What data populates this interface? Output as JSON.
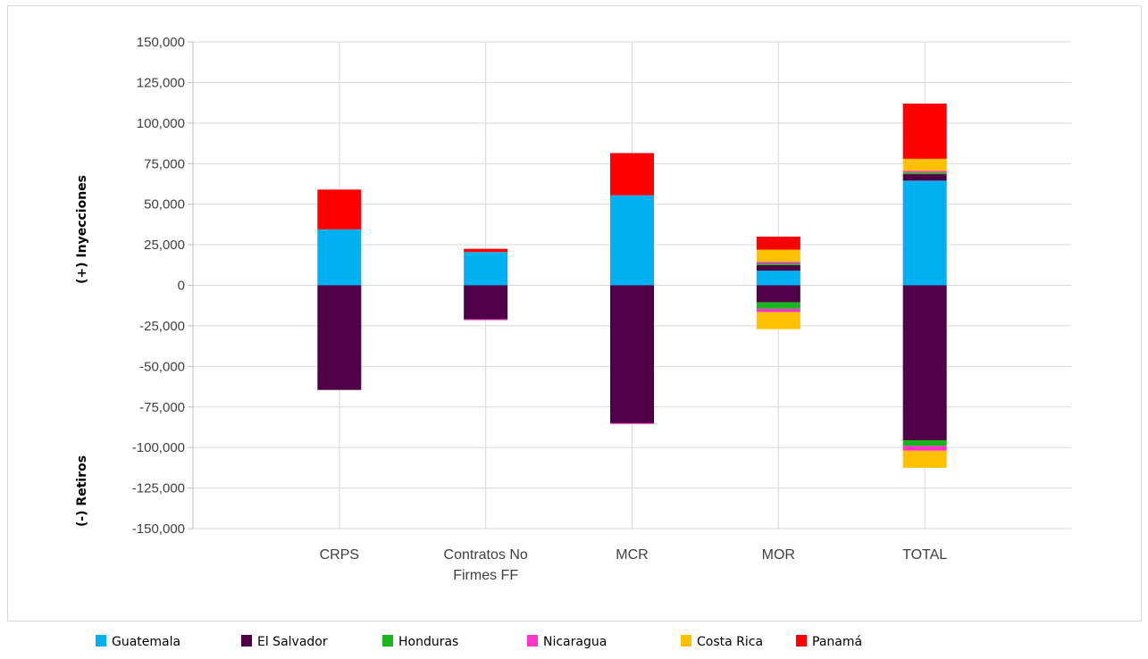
{
  "chart_data": {
    "type": "bar",
    "stacked": true,
    "categories": [
      [
        "CRPS"
      ],
      [
        "Contratos No",
        "Firmes FF"
      ],
      [
        "MCR"
      ],
      [
        "MOR"
      ],
      [
        "TOTAL"
      ]
    ],
    "y_axis_titles": {
      "positive": "(+) Inyecciones",
      "negative": "(-) Retiros"
    },
    "ylim": [
      -150000,
      150000
    ],
    "ytick_step": 25000,
    "y_tick_labels": [
      "150,000",
      "125,000",
      "100,000",
      "75,000",
      "50,000",
      "25,000",
      "0",
      "-25,000",
      "-50,000",
      "-75,000",
      "-100,000",
      "-125,000",
      "-150,000"
    ],
    "grid": true,
    "legend_position": "bottom",
    "series": [
      {
        "name": "Guatemala",
        "color": "#00b0f0",
        "positive": [
          34500,
          20500,
          55500,
          9000,
          64500
        ],
        "negative": [
          0,
          0,
          0,
          0,
          0
        ]
      },
      {
        "name": "El Salvador",
        "color": "#4f0046",
        "positive": [
          0,
          0,
          0,
          3500,
          4000
        ],
        "negative": [
          -64500,
          -21000,
          -85000,
          -10500,
          -95500
        ]
      },
      {
        "name": "Honduras",
        "color": "#19b51d",
        "positive": [
          0,
          0,
          0,
          1000,
          1000
        ],
        "negative": [
          0,
          0,
          0,
          -4000,
          -3500
        ]
      },
      {
        "name": "Nicaragua",
        "color": "#ff33cc",
        "positive": [
          0,
          0,
          0,
          1000,
          1000
        ],
        "negative": [
          0,
          -500,
          -500,
          -2000,
          -3000
        ]
      },
      {
        "name": "Costa Rica",
        "color": "#ffc000",
        "positive": [
          0,
          0,
          0,
          7500,
          7500
        ],
        "negative": [
          0,
          0,
          0,
          -10500,
          -10500
        ]
      },
      {
        "name": "Panamá",
        "color": "#ff0000",
        "positive": [
          24500,
          2000,
          26000,
          8000,
          34000
        ],
        "negative": [
          0,
          0,
          0,
          0,
          0
        ]
      }
    ]
  }
}
